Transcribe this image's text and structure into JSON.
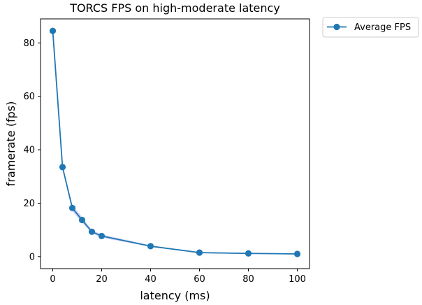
{
  "chart_data": {
    "type": "line",
    "title": "TORCS FPS on high-moderate latency",
    "xlabel": "latency (ms)",
    "ylabel": "framerate (fps)",
    "xlim": [
      -5,
      105
    ],
    "ylim": [
      -4.5,
      89
    ],
    "xticks": [
      0,
      20,
      40,
      60,
      80,
      100
    ],
    "yticks": [
      0,
      20,
      40,
      60,
      80
    ],
    "grid": false,
    "legend_position": "outside-top-right",
    "series": [
      {
        "name": "Average FPS",
        "color": "#1f77b4",
        "band_color": "#a6a6f2",
        "marker": "circle",
        "x": [
          0,
          4,
          8,
          12,
          16,
          20,
          40,
          60,
          80,
          100
        ],
        "y": [
          84.5,
          33.5,
          18.2,
          13.7,
          9.3,
          7.7,
          3.9,
          1.5,
          1.2,
          1.0
        ],
        "y_lower": [
          83.0,
          32.8,
          17.0,
          12.7,
          8.8,
          7.1,
          3.7,
          1.3,
          1.0,
          0.8
        ],
        "y_upper": [
          87.0,
          34.2,
          19.4,
          14.8,
          9.9,
          8.3,
          4.2,
          1.7,
          1.4,
          1.2
        ]
      }
    ]
  }
}
